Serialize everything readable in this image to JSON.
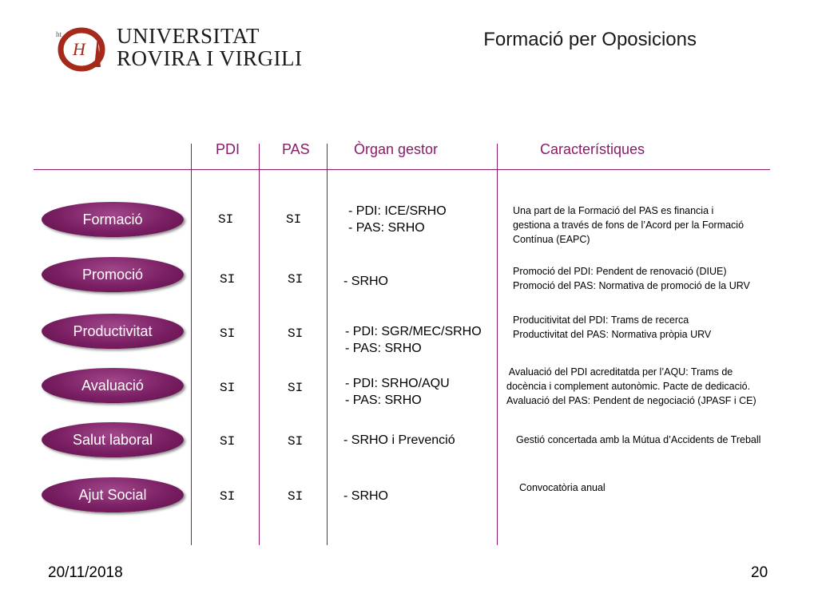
{
  "logo": {
    "name_line1": "UNIVERSITAT",
    "name_line2": "ROVIRA I VIRGILI"
  },
  "title": "Formació per Oposicions",
  "headers": {
    "pdi": "PDI",
    "pas": "PAS",
    "organ": "Òrgan gestor",
    "caracteristiques": "Característiques"
  },
  "rows": [
    {
      "label": "Formació",
      "pdi": "SI",
      "pas": "SI",
      "organ": [
        "- PDI: ICE/SRHO",
        "- PAS: SRHO"
      ],
      "car": [
        "Una part de la Formació del PAS es financia i",
        "gestiona a través de fons de l’Acord per la Formació",
        "Contínua (EAPC)"
      ]
    },
    {
      "label": "Promoció",
      "pdi": "SI",
      "pas": "SI",
      "organ": [
        "- SRHO"
      ],
      "car": [
        "Promoció del PDI: Pendent de renovació (DIUE)",
        "Promoció del PAS: Normativa de promoció de la URV"
      ]
    },
    {
      "label": "Productivitat",
      "pdi": "SI",
      "pas": "SI",
      "organ": [
        "- PDI: SGR/MEC/SRHO",
        "- PAS: SRHO"
      ],
      "car": [
        "Producitivitat del PDI: Trams de recerca",
        "Productivitat del PAS: Normativa pròpia URV"
      ]
    },
    {
      "label": "Avaluació",
      "pdi": "SI",
      "pas": "SI",
      "organ": [
        "- PDI: SRHO/AQU",
        "- PAS: SRHO"
      ],
      "car": [
        " Avaluació del PDI acreditatda per l’AQU: Trams de",
        "docència i complement autonòmic. Pacte de dedicació.",
        "Avaluació del PAS: Pendent de negociació (JPASF i CE)"
      ]
    },
    {
      "label": "Salut laboral",
      "pdi": "SI",
      "pas": "SI",
      "organ": [
        "- SRHO i Prevenció"
      ],
      "car": [
        "Gestió concertada amb la Mútua d’Accidents de Treball"
      ]
    },
    {
      "label": "Ajut Social",
      "pdi": "SI",
      "pas": "SI",
      "organ": [
        "- SRHO"
      ],
      "car": [
        "Convocatòria anual"
      ]
    }
  ],
  "footer": {
    "date": "20/11/2018",
    "page": "20"
  },
  "colors": {
    "accent": "#8a1a6a",
    "logo_red": "#a52a1c"
  }
}
